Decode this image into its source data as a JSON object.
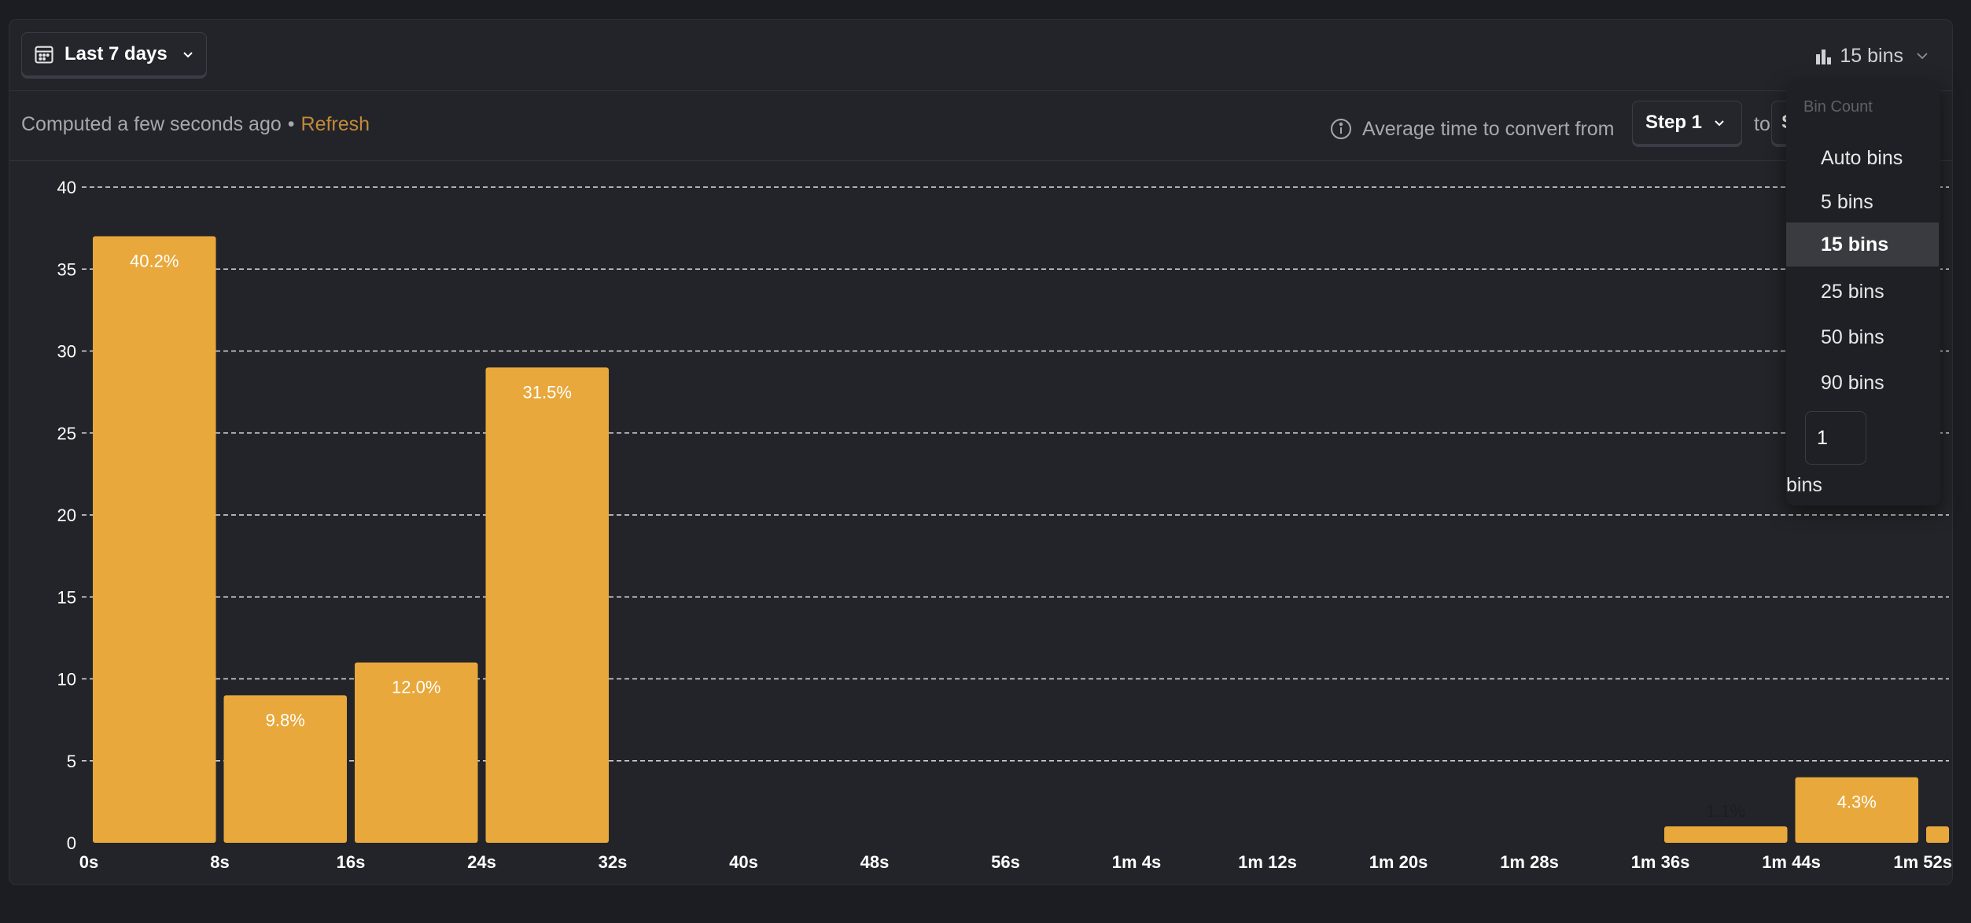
{
  "toolbar": {
    "date_range_label": "Last 7 days",
    "bins_label": "15 bins"
  },
  "info": {
    "computed_text": "Computed a few seconds ago",
    "separator": "•",
    "refresh_label": "Refresh",
    "avg_text": "Average time to convert from",
    "from_step": "Step 1",
    "to_text": "to",
    "to_step_partial": "S"
  },
  "dropdown": {
    "header": "Bin Count",
    "items": [
      "Auto bins",
      "5 bins",
      "15 bins",
      "25 bins",
      "50 bins",
      "90 bins"
    ],
    "selected_index": 2,
    "custom_value": "1",
    "custom_suffix": "bins"
  },
  "colors": {
    "bar": "#E8A83B",
    "background": "#232429",
    "grid": "#ffffff",
    "accent_refresh": "#C28A3A"
  },
  "chart_data": {
    "type": "bar",
    "ylim": [
      0,
      40
    ],
    "yticks": [
      0,
      5,
      10,
      15,
      20,
      25,
      30,
      35,
      40
    ],
    "xticks": [
      "0s",
      "8s",
      "16s",
      "24s",
      "32s",
      "40s",
      "48s",
      "56s",
      "1m 4s",
      "1m 12s",
      "1m 20s",
      "1m 28s",
      "1m 36s",
      "1m 44s",
      "1m 52s"
    ],
    "grid": true,
    "bars": [
      {
        "bin": 0,
        "value": 37,
        "label": "40.2%"
      },
      {
        "bin": 1,
        "value": 9,
        "label": "9.8%"
      },
      {
        "bin": 2,
        "value": 11,
        "label": "12.0%"
      },
      {
        "bin": 3,
        "value": 29,
        "label": "31.5%"
      },
      {
        "bin": 12,
        "value": 1,
        "label": "1.1%"
      },
      {
        "bin": 13,
        "value": 4,
        "label": "4.3%"
      },
      {
        "bin": 14,
        "value": 1,
        "label": ""
      }
    ]
  }
}
